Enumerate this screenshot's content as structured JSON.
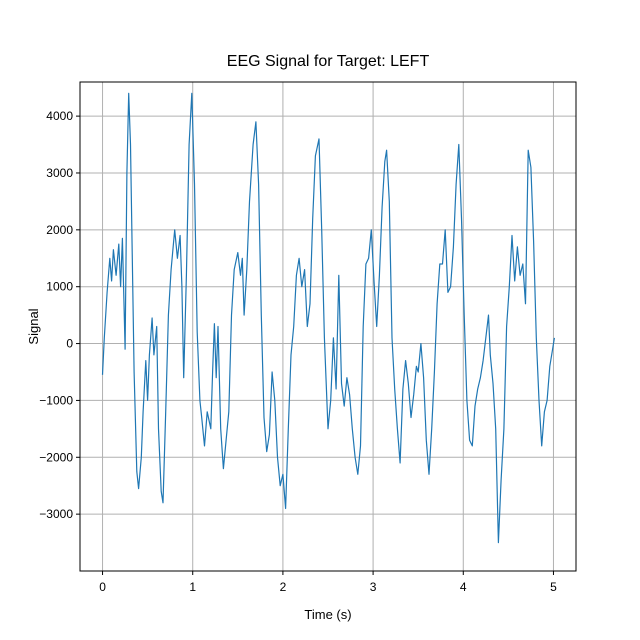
{
  "chart_data": {
    "type": "line",
    "title": "EEG Signal for Target: LEFT",
    "xlabel": "Time (s)",
    "ylabel": "Signal",
    "xlim": [
      -0.25,
      5.25
    ],
    "ylim": [
      -4000,
      4600
    ],
    "xticks": [
      0,
      1,
      2,
      3,
      4,
      5
    ],
    "yticks": [
      -3000,
      -2000,
      -1000,
      0,
      1000,
      2000,
      3000,
      4000
    ],
    "grid": true,
    "color": "#1f77b4",
    "series": [
      {
        "points": [
          [
            0.0,
            -550
          ],
          [
            0.02,
            100
          ],
          [
            0.05,
            900
          ],
          [
            0.08,
            1500
          ],
          [
            0.1,
            1100
          ],
          [
            0.12,
            1650
          ],
          [
            0.15,
            1200
          ],
          [
            0.18,
            1750
          ],
          [
            0.2,
            1000
          ],
          [
            0.22,
            1850
          ],
          [
            0.25,
            -100
          ],
          [
            0.27,
            3000
          ],
          [
            0.29,
            4400
          ],
          [
            0.31,
            3500
          ],
          [
            0.33,
            1500
          ],
          [
            0.35,
            -500
          ],
          [
            0.38,
            -2250
          ],
          [
            0.4,
            -2550
          ],
          [
            0.43,
            -2000
          ],
          [
            0.45,
            -1200
          ],
          [
            0.48,
            -300
          ],
          [
            0.5,
            -1000
          ],
          [
            0.52,
            -200
          ],
          [
            0.55,
            450
          ],
          [
            0.57,
            -200
          ],
          [
            0.6,
            300
          ],
          [
            0.62,
            -1500
          ],
          [
            0.65,
            -2600
          ],
          [
            0.67,
            -2800
          ],
          [
            0.7,
            -1200
          ],
          [
            0.73,
            500
          ],
          [
            0.76,
            1300
          ],
          [
            0.8,
            2000
          ],
          [
            0.83,
            1500
          ],
          [
            0.86,
            1900
          ],
          [
            0.88,
            1000
          ],
          [
            0.9,
            -600
          ],
          [
            0.93,
            1200
          ],
          [
            0.96,
            3500
          ],
          [
            0.99,
            4400
          ],
          [
            1.02,
            2800
          ],
          [
            1.05,
            200
          ],
          [
            1.08,
            -1000
          ],
          [
            1.1,
            -1300
          ],
          [
            1.13,
            -1800
          ],
          [
            1.16,
            -1200
          ],
          [
            1.2,
            -1500
          ],
          [
            1.22,
            -500
          ],
          [
            1.24,
            350
          ],
          [
            1.26,
            -600
          ],
          [
            1.28,
            300
          ],
          [
            1.31,
            -1500
          ],
          [
            1.34,
            -2200
          ],
          [
            1.37,
            -1700
          ],
          [
            1.4,
            -1200
          ],
          [
            1.43,
            500
          ],
          [
            1.46,
            1300
          ],
          [
            1.5,
            1600
          ],
          [
            1.53,
            1200
          ],
          [
            1.55,
            1500
          ],
          [
            1.57,
            500
          ],
          [
            1.6,
            1300
          ],
          [
            1.63,
            2500
          ],
          [
            1.67,
            3500
          ],
          [
            1.7,
            3900
          ],
          [
            1.73,
            2800
          ],
          [
            1.76,
            500
          ],
          [
            1.79,
            -1300
          ],
          [
            1.82,
            -1900
          ],
          [
            1.85,
            -1600
          ],
          [
            1.88,
            -500
          ],
          [
            1.91,
            -1000
          ],
          [
            1.94,
            -2000
          ],
          [
            1.97,
            -2500
          ],
          [
            2.0,
            -2300
          ],
          [
            2.03,
            -2900
          ],
          [
            2.06,
            -1500
          ],
          [
            2.09,
            -200
          ],
          [
            2.12,
            300
          ],
          [
            2.15,
            1200
          ],
          [
            2.18,
            1500
          ],
          [
            2.21,
            1000
          ],
          [
            2.24,
            1300
          ],
          [
            2.27,
            300
          ],
          [
            2.3,
            700
          ],
          [
            2.33,
            2200
          ],
          [
            2.36,
            3300
          ],
          [
            2.4,
            3600
          ],
          [
            2.43,
            2000
          ],
          [
            2.46,
            100
          ],
          [
            2.5,
            -1500
          ],
          [
            2.53,
            -1000
          ],
          [
            2.56,
            100
          ],
          [
            2.59,
            -800
          ],
          [
            2.62,
            1200
          ],
          [
            2.65,
            -700
          ],
          [
            2.68,
            -1100
          ],
          [
            2.71,
            -600
          ],
          [
            2.74,
            -900
          ],
          [
            2.77,
            -1500
          ],
          [
            2.8,
            -2000
          ],
          [
            2.83,
            -2300
          ],
          [
            2.86,
            -1800
          ],
          [
            2.89,
            300
          ],
          [
            2.92,
            1400
          ],
          [
            2.95,
            1500
          ],
          [
            2.98,
            2000
          ],
          [
            3.01,
            1100
          ],
          [
            3.04,
            300
          ],
          [
            3.07,
            1200
          ],
          [
            3.1,
            2400
          ],
          [
            3.13,
            3200
          ],
          [
            3.15,
            3400
          ],
          [
            3.18,
            2500
          ],
          [
            3.21,
            100
          ],
          [
            3.24,
            -800
          ],
          [
            3.27,
            -1500
          ],
          [
            3.3,
            -2100
          ],
          [
            3.33,
            -800
          ],
          [
            3.36,
            -300
          ],
          [
            3.39,
            -700
          ],
          [
            3.42,
            -1300
          ],
          [
            3.45,
            -900
          ],
          [
            3.48,
            -400
          ],
          [
            3.5,
            -500
          ],
          [
            3.53,
            0
          ],
          [
            3.56,
            -600
          ],
          [
            3.59,
            -1700
          ],
          [
            3.62,
            -2300
          ],
          [
            3.65,
            -1500
          ],
          [
            3.68,
            -500
          ],
          [
            3.71,
            700
          ],
          [
            3.74,
            1400
          ],
          [
            3.77,
            1400
          ],
          [
            3.8,
            2000
          ],
          [
            3.83,
            900
          ],
          [
            3.86,
            1000
          ],
          [
            3.89,
            1700
          ],
          [
            3.92,
            2800
          ],
          [
            3.95,
            3500
          ],
          [
            3.98,
            2200
          ],
          [
            4.01,
            500
          ],
          [
            4.04,
            -1000
          ],
          [
            4.07,
            -1700
          ],
          [
            4.1,
            -1800
          ],
          [
            4.13,
            -1100
          ],
          [
            4.16,
            -800
          ],
          [
            4.19,
            -600
          ],
          [
            4.22,
            -300
          ],
          [
            4.25,
            100
          ],
          [
            4.28,
            500
          ],
          [
            4.3,
            -200
          ],
          [
            4.33,
            -700
          ],
          [
            4.36,
            -1500
          ],
          [
            4.39,
            -3500
          ],
          [
            4.42,
            -2400
          ],
          [
            4.45,
            -1500
          ],
          [
            4.48,
            300
          ],
          [
            4.51,
            1000
          ],
          [
            4.54,
            1900
          ],
          [
            4.57,
            1100
          ],
          [
            4.6,
            1700
          ],
          [
            4.63,
            1200
          ],
          [
            4.66,
            1400
          ],
          [
            4.69,
            700
          ],
          [
            4.72,
            3400
          ],
          [
            4.75,
            3100
          ],
          [
            4.78,
            1800
          ],
          [
            4.81,
            100
          ],
          [
            4.84,
            -1000
          ],
          [
            4.87,
            -1800
          ],
          [
            4.9,
            -1200
          ],
          [
            4.93,
            -1000
          ],
          [
            4.96,
            -400
          ],
          [
            4.99,
            -100
          ],
          [
            5.01,
            100
          ]
        ]
      }
    ]
  }
}
